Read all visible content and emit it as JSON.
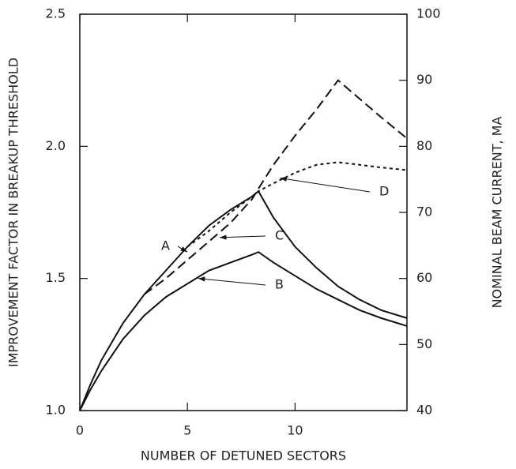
{
  "chart_data": {
    "type": "line",
    "x_label": "NUMBER OF DETUNED SECTORS",
    "y_label": "IMPROVEMENT FACTOR IN BREAKUP THRESHOLD",
    "y2_label": "NOMINAL BEAM CURRENT, MA",
    "x": [
      0,
      0.5,
      1,
      2,
      3,
      4,
      5,
      6,
      7,
      8,
      8.3,
      9,
      10,
      11,
      12,
      13,
      14,
      15.2
    ],
    "series": [
      {
        "name": "A",
        "color": "#111111",
        "dash": "solid",
        "values": [
          1.0,
          1.1,
          1.19,
          1.33,
          1.44,
          1.53,
          1.62,
          1.7,
          1.76,
          1.81,
          1.83,
          1.73,
          1.62,
          1.54,
          1.47,
          1.42,
          1.38,
          1.35
        ]
      },
      {
        "name": "B",
        "color": "#111111",
        "dash": "solid",
        "values": [
          1.0,
          1.08,
          1.15,
          1.27,
          1.36,
          1.43,
          1.48,
          1.53,
          1.56,
          1.59,
          1.6,
          1.56,
          1.51,
          1.46,
          1.42,
          1.38,
          1.35,
          1.32
        ]
      },
      {
        "name": "C",
        "color": "#111111",
        "dash": "dashed",
        "values": [
          null,
          null,
          null,
          null,
          1.44,
          1.5,
          1.57,
          1.64,
          1.71,
          1.8,
          1.84,
          1.93,
          2.04,
          2.14,
          2.25,
          2.18,
          2.11,
          2.03
        ]
      },
      {
        "name": "D",
        "color": "#111111",
        "dash": "dotted",
        "values": [
          null,
          null,
          null,
          null,
          null,
          null,
          1.62,
          1.68,
          1.75,
          1.81,
          1.83,
          1.86,
          1.9,
          1.93,
          1.94,
          1.93,
          1.92,
          1.91
        ]
      }
    ],
    "xlim": [
      0,
      15.2
    ],
    "xticks": [
      0,
      5,
      10
    ],
    "ylim": [
      1,
      2.5
    ],
    "yticks": [
      {
        "value": 1,
        "label": "1.0"
      },
      1.5,
      {
        "value": 2,
        "label": "2.0"
      },
      2.5
    ],
    "y2lim": [
      40,
      100
    ],
    "y2ticks": [
      40,
      50,
      60,
      70,
      80,
      90,
      100
    ]
  }
}
